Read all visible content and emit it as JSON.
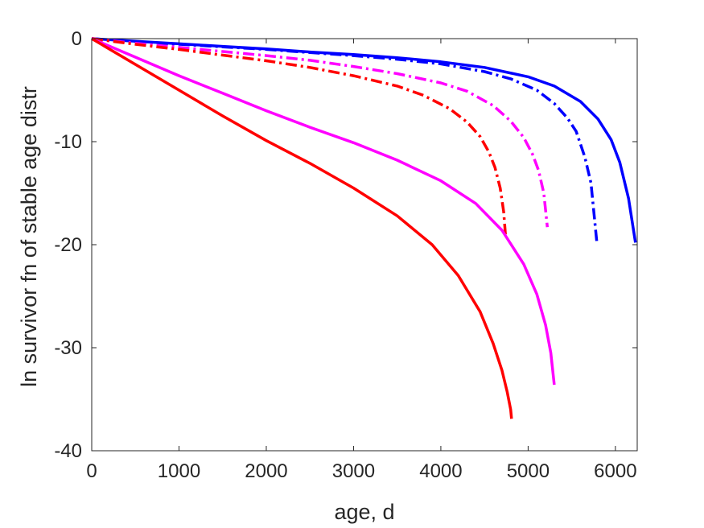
{
  "chart_data": {
    "type": "line",
    "title": "",
    "xlabel": "age, d",
    "ylabel": "ln survivor fn of stable age distr",
    "xlim": [
      0,
      6250
    ],
    "ylim": [
      -40,
      0
    ],
    "xticks": [
      0,
      1000,
      2000,
      3000,
      4000,
      5000,
      6000
    ],
    "yticks": [
      0,
      -10,
      -20,
      -30,
      -40
    ],
    "xtick_labels": [
      "0",
      "1000",
      "2000",
      "3000",
      "4000",
      "5000",
      "6000"
    ],
    "ytick_labels": [
      "0",
      "-10",
      "-20",
      "-30",
      "-40"
    ],
    "grid": false,
    "legend": "none",
    "series": [
      {
        "color": "#0000ff",
        "style": "solid",
        "x": [
          0,
          500,
          1000,
          1500,
          2000,
          2500,
          3000,
          3500,
          4000,
          4500,
          5000,
          5300,
          5600,
          5800,
          5950,
          6050,
          6150,
          6230
        ],
        "y": [
          0,
          -0.25,
          -0.5,
          -0.75,
          -1.0,
          -1.3,
          -1.55,
          -1.85,
          -2.25,
          -2.8,
          -3.7,
          -4.6,
          -6.1,
          -7.8,
          -9.8,
          -12.0,
          -15.5,
          -19.8
        ]
      },
      {
        "color": "#0000ff",
        "style": "dashdot",
        "x": [
          0,
          500,
          1000,
          1500,
          2000,
          2500,
          3000,
          3500,
          4000,
          4500,
          4800,
          5100,
          5300,
          5450,
          5550,
          5650,
          5720,
          5790
        ],
        "y": [
          0,
          -0.3,
          -0.55,
          -0.8,
          -1.05,
          -1.35,
          -1.65,
          -2.0,
          -2.45,
          -3.2,
          -3.9,
          -5.0,
          -6.3,
          -7.7,
          -9.0,
          -11.5,
          -14.0,
          -20.0
        ]
      },
      {
        "color": "#ff00ff",
        "style": "dashdot",
        "x": [
          0,
          500,
          1000,
          1500,
          2000,
          2500,
          3000,
          3500,
          4000,
          4300,
          4600,
          4800,
          4950,
          5050,
          5120,
          5180,
          5220
        ],
        "y": [
          0,
          -0.45,
          -0.85,
          -1.25,
          -1.65,
          -2.1,
          -2.7,
          -3.4,
          -4.3,
          -5.1,
          -6.5,
          -8.0,
          -9.6,
          -11.2,
          -12.8,
          -15.0,
          -18.3
        ]
      },
      {
        "color": "#ff0000",
        "style": "dashdot",
        "x": [
          0,
          500,
          1000,
          1500,
          2000,
          2500,
          3000,
          3500,
          3800,
          4100,
          4300,
          4450,
          4550,
          4620,
          4680,
          4720,
          4740
        ],
        "y": [
          0,
          -0.55,
          -1.05,
          -1.6,
          -2.15,
          -2.8,
          -3.6,
          -4.6,
          -5.5,
          -6.8,
          -8.1,
          -9.5,
          -11.0,
          -12.5,
          -14.5,
          -16.8,
          -19.0
        ]
      },
      {
        "color": "#ff00ff",
        "style": "solid",
        "x": [
          0,
          500,
          1000,
          1500,
          2000,
          2500,
          3000,
          3500,
          4000,
          4400,
          4700,
          4950,
          5100,
          5200,
          5260,
          5300
        ],
        "y": [
          0,
          -1.8,
          -3.6,
          -5.3,
          -7.0,
          -8.6,
          -10.1,
          -11.8,
          -13.8,
          -16.0,
          -18.6,
          -21.9,
          -24.8,
          -27.8,
          -30.5,
          -33.6
        ]
      },
      {
        "color": "#ff0000",
        "style": "solid",
        "x": [
          0,
          500,
          1000,
          1500,
          2000,
          2500,
          3000,
          3500,
          3900,
          4200,
          4450,
          4600,
          4700,
          4760,
          4800,
          4810
        ],
        "y": [
          0,
          -2.5,
          -5.0,
          -7.5,
          -9.9,
          -12.1,
          -14.5,
          -17.2,
          -20.0,
          -23.0,
          -26.5,
          -29.6,
          -32.2,
          -34.3,
          -36.0,
          -36.9
        ]
      }
    ]
  }
}
